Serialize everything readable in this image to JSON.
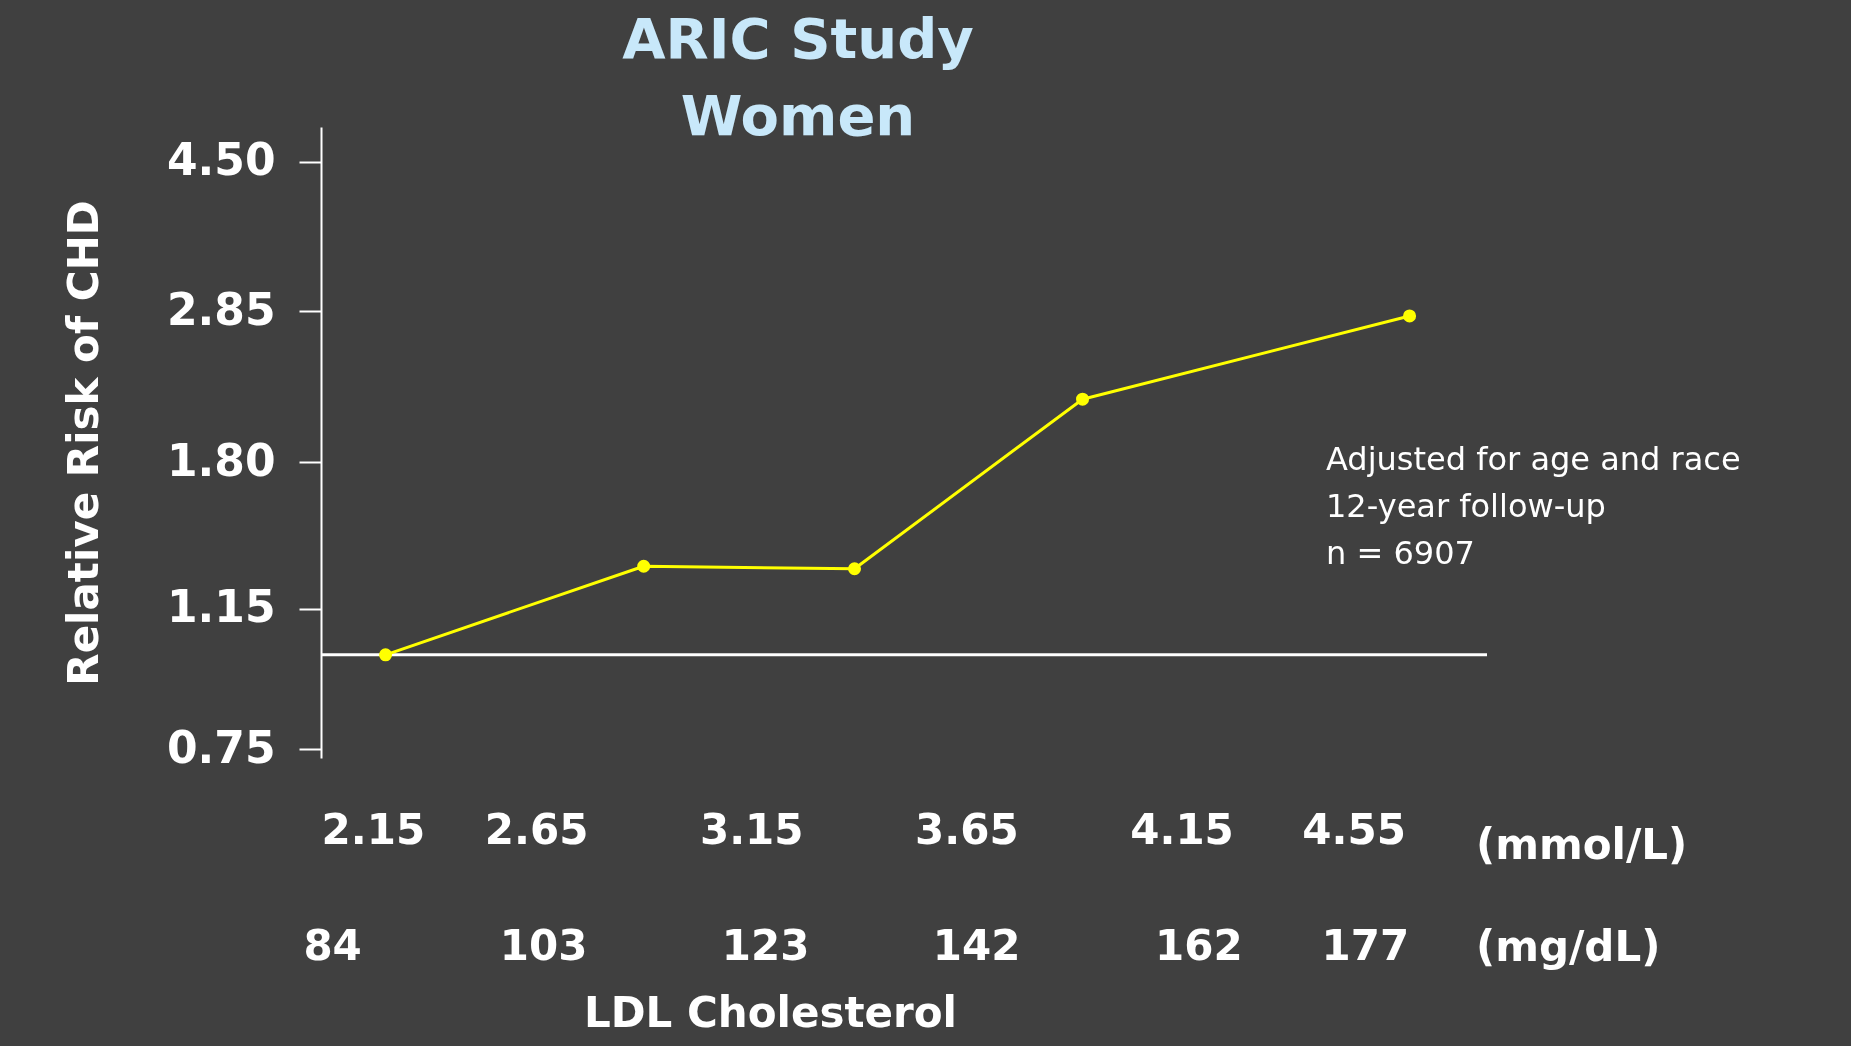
{
  "chart_data": {
    "type": "line",
    "title": [
      "ARIC Study",
      "Women"
    ],
    "ylabel": "Relative Risk of CHD",
    "xlabel": "LDL Cholesterol",
    "x": [
      2.3,
      2.9,
      3.39,
      3.92,
      4.68
    ],
    "series": [
      {
        "color": "#ffff00",
        "values": [
          1.0,
          1.31,
          1.3,
          2.18,
          2.81
        ]
      }
    ],
    "log": "y",
    "marker": "circle",
    "line_style": "solid",
    "grid": false,
    "ylim": [
      0.73,
      5.0
    ],
    "yticks": [
      {
        "value": 0.75,
        "label": "0.75"
      },
      {
        "value": 1.15,
        "label": "1.15"
      },
      {
        "value": 1.8,
        "label": "1.80"
      },
      {
        "value": 2.85,
        "label": "2.85"
      },
      {
        "value": 4.5,
        "label": "4.50"
      }
    ],
    "xlim": [
      2.15,
      4.86
    ],
    "xticks": [
      2.15,
      2.65,
      3.15,
      3.65,
      4.15,
      4.55
    ],
    "x2lim": [
      83,
      188
    ],
    "x2ticks": [
      84,
      103,
      123,
      142,
      162,
      177
    ],
    "ref_lines": [
      {
        "axis": "y",
        "value": 1.0,
        "color": "#ffffff"
      }
    ],
    "annotations": [
      "(mmol/L)",
      "(mg/dL)",
      "Adjusted for age and race",
      "12-year follow-up",
      "n = 6907"
    ]
  }
}
